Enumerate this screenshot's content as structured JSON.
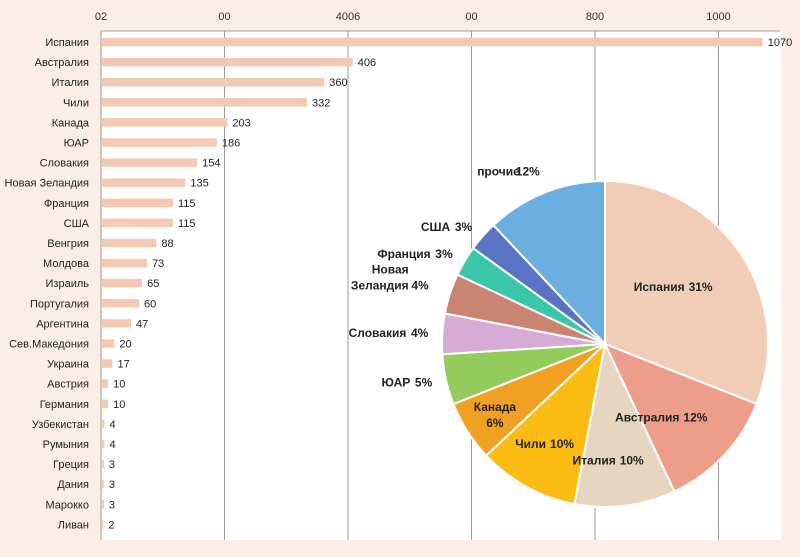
{
  "chart_data": [
    {
      "type": "bar",
      "orientation": "horizontal",
      "categories": [
        "Испания",
        "Австралия",
        "Италия",
        "Чили",
        "Канада",
        "ЮАР",
        "Словакия",
        "Новая Зеландия",
        "Франция",
        "США",
        "Венгрия",
        "Молдова",
        "Израиль",
        "Португалия",
        "Аргентина",
        "Сев.Македония",
        "Украина",
        "Австрия",
        "Германия",
        "Узбекистан",
        "Румыния",
        "Греция",
        "Дания",
        "Марокко",
        "Ливан"
      ],
      "values": [
        1070,
        406,
        360,
        332,
        203,
        186,
        154,
        135,
        115,
        115,
        88,
        73,
        65,
        60,
        47,
        20,
        17,
        10,
        10,
        4,
        4,
        3,
        3,
        3,
        2
      ],
      "value_labels": [
        "1070",
        "406",
        "360",
        "332",
        "203",
        "186",
        "154",
        "135",
        "115",
        "115",
        "88",
        "73",
        "65",
        "60",
        "47",
        "20",
        "17",
        "10",
        "10",
        "4",
        "4",
        "3",
        "3",
        "3",
        "2"
      ],
      "xaxis_tick_labels": [
        "02",
        "00",
        "4006",
        "00",
        "800",
        "1000"
      ],
      "xaxis_ticks": [
        0,
        200,
        400,
        600,
        800,
        1000
      ],
      "xlim": [
        0,
        1100
      ],
      "xaxis_position": "top",
      "grid": true,
      "bar_color": "#f3c9b3"
    },
    {
      "type": "pie",
      "slices": [
        {
          "label": "Испания",
          "pct_text": "31%",
          "value": 31,
          "color": "#f1cdb8"
        },
        {
          "label": "Австралия",
          "pct_text": "12%",
          "value": 12,
          "color": "#ec9e8a"
        },
        {
          "label": "Италия",
          "pct_text": "10%",
          "value": 10,
          "color": "#e6d6bf"
        },
        {
          "label": "Чили",
          "pct_text": "10%",
          "value": 10,
          "color": "#fbbd14"
        },
        {
          "label": "Канада",
          "pct_text": "6%",
          "value": 6,
          "color": "#f0a122"
        },
        {
          "label": "ЮАР",
          "pct_text": "5%",
          "value": 5,
          "color": "#93cc5c"
        },
        {
          "label": "Словакия",
          "pct_text": "4%",
          "value": 4,
          "color": "#d6acd6"
        },
        {
          "label": "Новая Зеландия",
          "pct_text": "4%",
          "value": 4,
          "color": "#c98472"
        },
        {
          "label": "Франция",
          "pct_text": "3%",
          "value": 3,
          "color": "#39c6a9"
        },
        {
          "label": "США",
          "pct_text": "3%",
          "value": 3,
          "color": "#5a73c4"
        },
        {
          "label": "прочие",
          "pct_text": "12%",
          "value": 12,
          "color": "#6aafe0"
        }
      ]
    }
  ]
}
